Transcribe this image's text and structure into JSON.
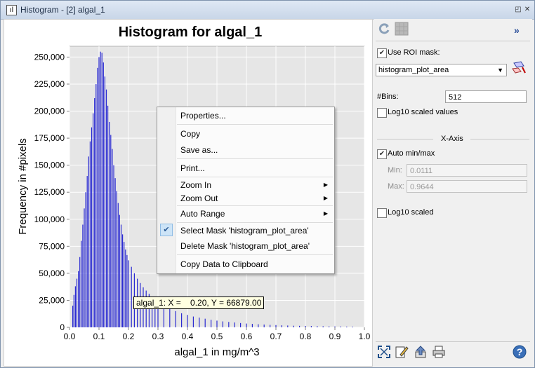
{
  "window": {
    "title": "Histogram - [2] algal_1",
    "app_icon": "histogram-app-icon",
    "buttons": [
      "restore-icon",
      "close-icon"
    ]
  },
  "chart_data": {
    "type": "bar",
    "title": "Histogram for algal_1",
    "xlabel": "algal_1 in mg/m^3",
    "ylabel": "Frequency in #pixels",
    "xlim": [
      0.0,
      1.0
    ],
    "ylim": [
      0,
      260000
    ],
    "xticks": [
      "0.0",
      "0.1",
      "0.2",
      "0.3",
      "0.4",
      "0.5",
      "0.6",
      "0.7",
      "0.8",
      "0.9",
      "1.0"
    ],
    "yticks": [
      "0",
      "25,000",
      "50,000",
      "75,000",
      "100,000",
      "125,000",
      "150,000",
      "175,000",
      "200,000",
      "225,000",
      "250,000"
    ],
    "grid": true,
    "bar_color": "#2b2bd2",
    "background": "#e6e6e6",
    "x": [
      0.011,
      0.015,
      0.02,
      0.025,
      0.03,
      0.035,
      0.04,
      0.045,
      0.05,
      0.055,
      0.06,
      0.065,
      0.07,
      0.075,
      0.08,
      0.085,
      0.09,
      0.095,
      0.1,
      0.105,
      0.11,
      0.115,
      0.12,
      0.125,
      0.13,
      0.135,
      0.14,
      0.145,
      0.15,
      0.155,
      0.16,
      0.165,
      0.17,
      0.175,
      0.18,
      0.185,
      0.19,
      0.195,
      0.2,
      0.21,
      0.22,
      0.23,
      0.24,
      0.25,
      0.26,
      0.27,
      0.28,
      0.29,
      0.3,
      0.32,
      0.34,
      0.36,
      0.38,
      0.4,
      0.42,
      0.44,
      0.46,
      0.48,
      0.5,
      0.52,
      0.54,
      0.56,
      0.58,
      0.6,
      0.62,
      0.64,
      0.66,
      0.68,
      0.7,
      0.72,
      0.74,
      0.76,
      0.78,
      0.8,
      0.82,
      0.84,
      0.86,
      0.88,
      0.9,
      0.92,
      0.94,
      0.96
    ],
    "values": [
      20000,
      30000,
      38000,
      45000,
      52000,
      65000,
      80000,
      95000,
      110000,
      125000,
      140000,
      158000,
      172000,
      185000,
      198000,
      212000,
      225000,
      240000,
      250000,
      255000,
      254000,
      245000,
      232000,
      220000,
      205000,
      190000,
      178000,
      165000,
      150000,
      138000,
      126000,
      115000,
      104000,
      95000,
      86000,
      79000,
      72000,
      66879,
      62000,
      56000,
      50000,
      45000,
      41000,
      37000,
      34000,
      31000,
      28000,
      26000,
      24000,
      20000,
      17000,
      15000,
      13000,
      11500,
      10000,
      9000,
      8000,
      7000,
      6200,
      5500,
      5000,
      4500,
      4000,
      3500,
      3200,
      2900,
      2600,
      2300,
      2100,
      1900,
      1700,
      1500,
      1400,
      1300,
      1200,
      1100,
      1000,
      900,
      850,
      800,
      700,
      650
    ]
  },
  "toolbar_top": {
    "refresh_icon": "refresh-icon",
    "table_icon": "table-view-icon",
    "expand_icon": "expand-panel-icon"
  },
  "options": {
    "use_roi_label": "Use ROI mask:",
    "use_roi_checked": true,
    "roi_value": "histogram_plot_area",
    "roi_icon": "roi-mask-tool-icon",
    "bins_label": "#Bins:",
    "bins_value": "512",
    "log10_values_label": "Log10 scaled values",
    "log10_values_checked": false,
    "xaxis_label": "X-Axis",
    "auto_minmax_label": "Auto min/max",
    "auto_minmax_checked": true,
    "min_label": "Min:",
    "min_value": "0.0111",
    "max_label": "Max:",
    "max_value": "0.9644",
    "log10_scaled_label": "Log10 scaled",
    "log10_scaled_checked": false
  },
  "bottom_toolbar": {
    "zoom_all_icon": "zoom-all-icon",
    "edit_icon": "edit-icon",
    "export_icon": "export-icon",
    "print_icon": "print-icon",
    "help_icon": "help-icon"
  },
  "context_menu": {
    "properties": "Properties...",
    "copy": "Copy",
    "save_as": "Save as...",
    "print": "Print...",
    "zoom_in": "Zoom In",
    "zoom_out": "Zoom Out",
    "auto_range": "Auto Range",
    "select_mask": "Select Mask 'histogram_plot_area'",
    "delete_mask": "Delete Mask 'histogram_plot_area'",
    "copy_data": "Copy Data to Clipboard"
  },
  "tooltip": {
    "text": "algal_1: X =    0.20, Y = 66879.00"
  }
}
